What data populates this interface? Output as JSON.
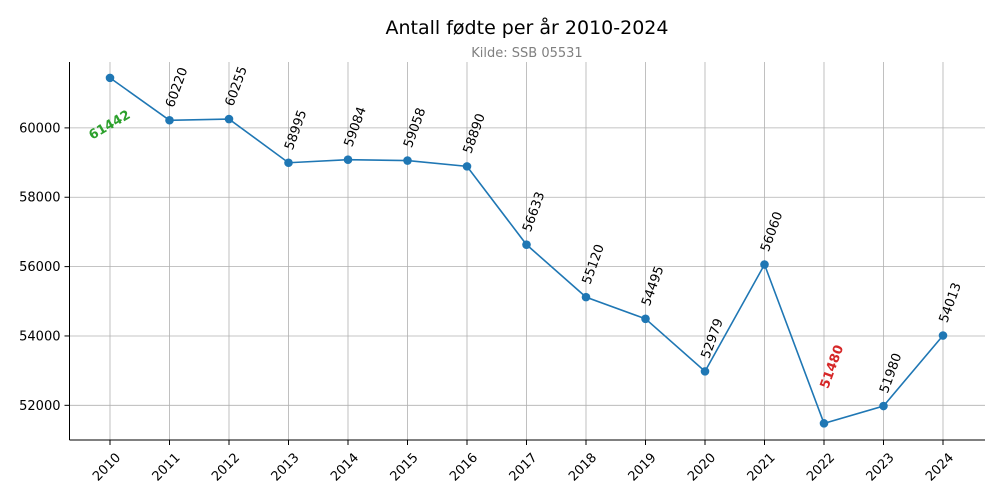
{
  "chart_data": {
    "type": "line",
    "title": "Antall fødte per år 2010-2024",
    "subtitle": "Kilde: SSB 05531",
    "xlabel": "",
    "ylabel": "",
    "x": [
      "2010",
      "2011",
      "2012",
      "2013",
      "2014",
      "2015",
      "2016",
      "2017",
      "2018",
      "2019",
      "2020",
      "2021",
      "2022",
      "2023",
      "2024"
    ],
    "series": [
      {
        "values": [
          61442,
          60220,
          60255,
          58995,
          59084,
          59058,
          58890,
          56633,
          55120,
          54495,
          52979,
          56060,
          51480,
          51980,
          54013
        ],
        "color": "#1f77b4"
      }
    ],
    "ylim": [
      51000,
      61900
    ],
    "yticks": [
      52000,
      54000,
      56000,
      58000,
      60000
    ],
    "grid": true,
    "highlight": {
      "max_color": "#2ca02c",
      "min_color": "#d62728"
    }
  }
}
